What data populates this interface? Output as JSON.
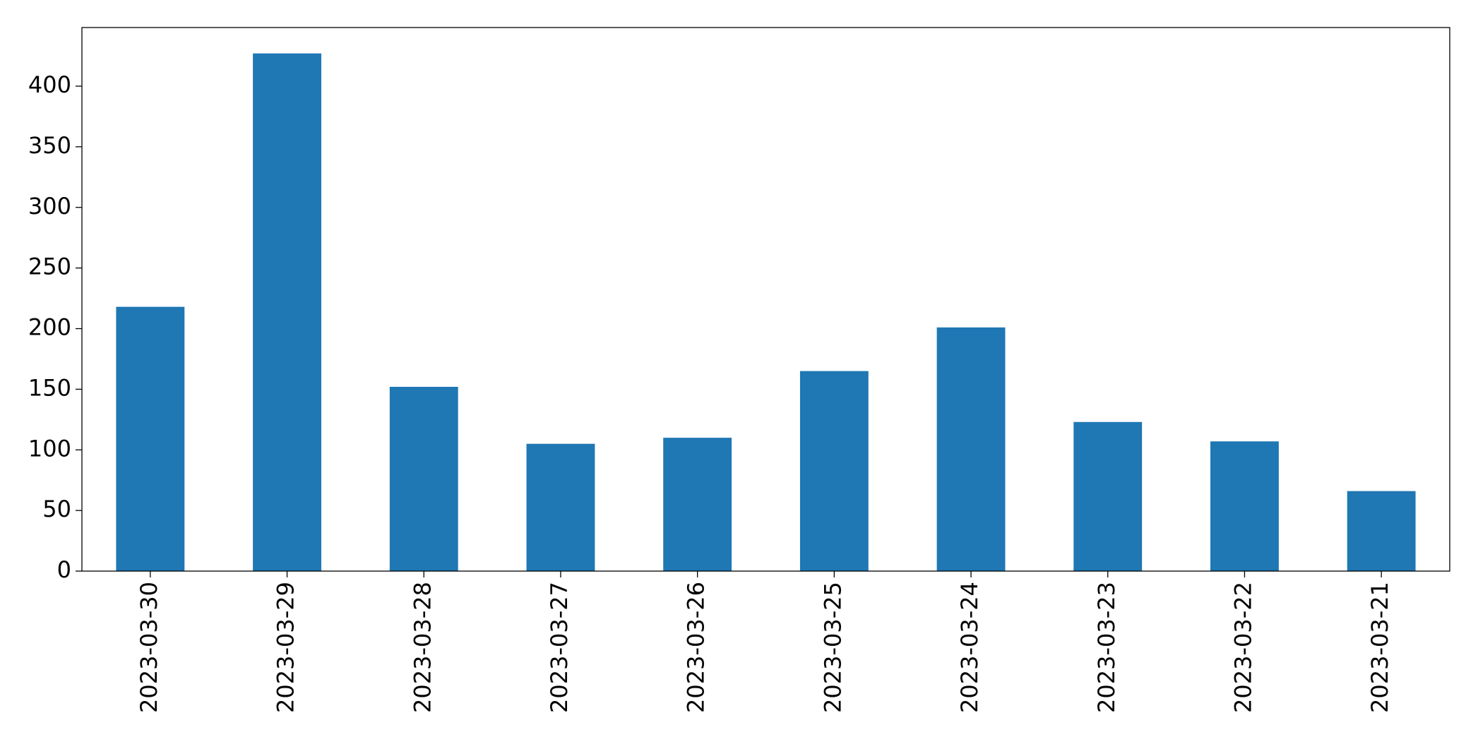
{
  "chart_data": {
    "type": "bar",
    "categories": [
      "2023-03-30",
      "2023-03-29",
      "2023-03-28",
      "2023-03-27",
      "2023-03-26",
      "2023-03-25",
      "2023-03-24",
      "2023-03-23",
      "2023-03-22",
      "2023-03-21"
    ],
    "values": [
      218,
      427,
      152,
      105,
      110,
      165,
      201,
      123,
      107,
      66
    ],
    "color": "#1f77b4",
    "ylim": [
      0,
      448.35
    ],
    "yticks": [
      0,
      50,
      100,
      150,
      200,
      250,
      300,
      350,
      400
    ],
    "grid": false
  }
}
